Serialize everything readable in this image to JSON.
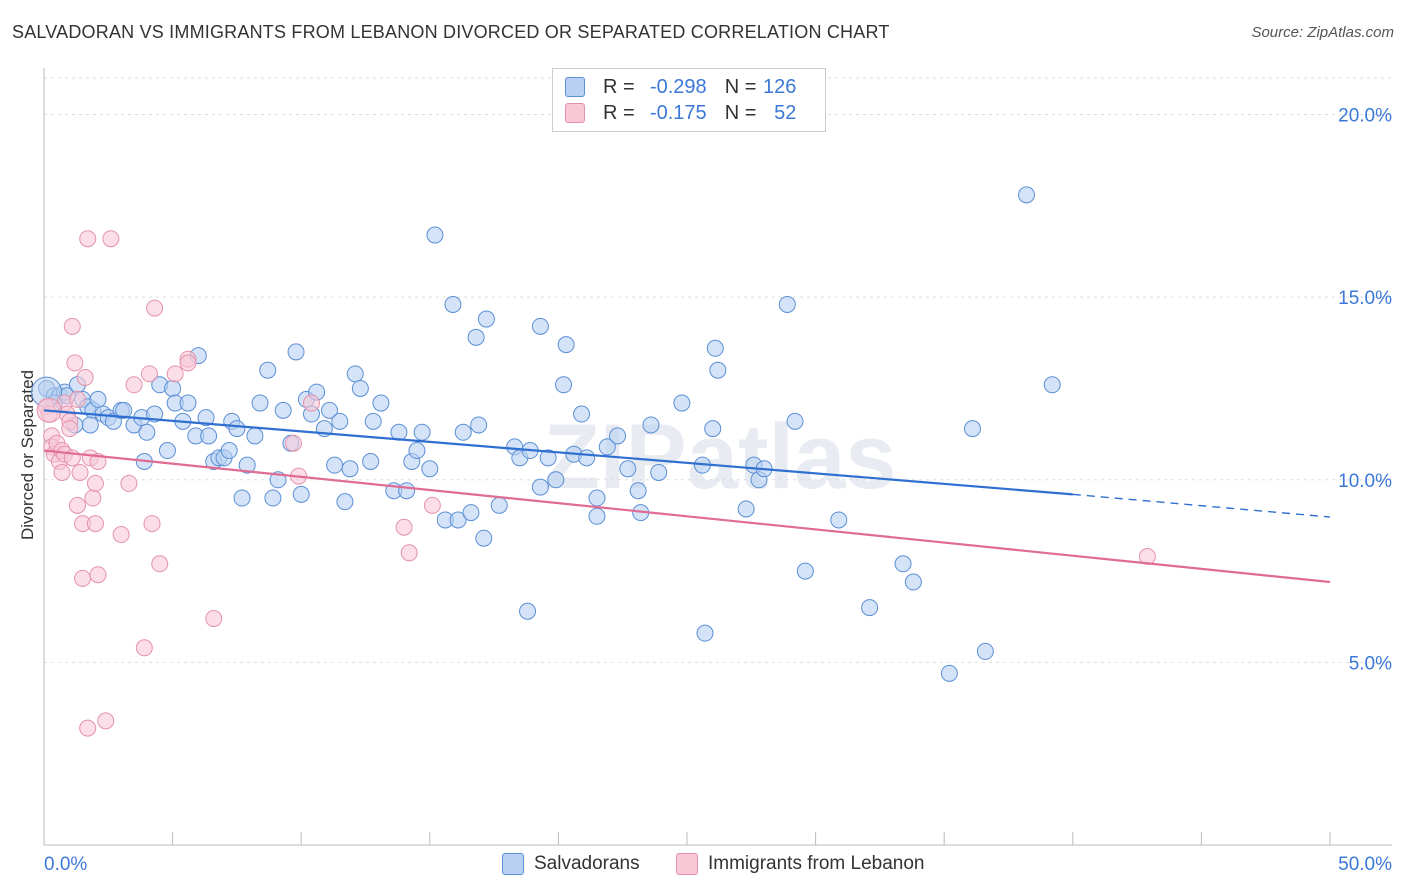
{
  "title": "SALVADORAN VS IMMIGRANTS FROM LEBANON DIVORCED OR SEPARATED CORRELATION CHART",
  "source": "Source: ZipAtlas.com",
  "watermark": "ZIPatlas",
  "legend_top": {
    "rows": [
      {
        "r_label": "R =",
        "r_value": "-0.298",
        "n_label": "N =",
        "n_value": "126",
        "color": "#5b8fd6"
      },
      {
        "r_label": "R =",
        "r_value": "-0.175",
        "n_label": "N =",
        "n_value": "52",
        "color": "#e493ad"
      }
    ]
  },
  "chart_data": {
    "type": "scatter",
    "title": "SALVADORAN VS IMMIGRANTS FROM LEBANON DIVORCED OR SEPARATED CORRELATION CHART",
    "xlabel": "",
    "ylabel": "Divorced or Separated",
    "xlim": [
      0,
      50
    ],
    "ylim": [
      0,
      21
    ],
    "x_tick_labels": [
      "0.0%",
      "50.0%"
    ],
    "y_ticks": [
      5,
      10,
      15,
      20
    ],
    "y_tick_labels": [
      "5.0%",
      "10.0%",
      "15.0%",
      "20.0%"
    ],
    "grid": true,
    "legend_position": "bottom",
    "series": [
      {
        "name": "Salvadorans",
        "color": "#5b8fd6",
        "fill": "#b8d0f1",
        "trend": {
          "x0": 0,
          "y0": 11.9,
          "x1": 40,
          "y1": 9.6,
          "dash_to_x": 50,
          "dash_to_y": 8.98
        },
        "points": [
          [
            0.1,
            12.5
          ],
          [
            0.4,
            12.3
          ],
          [
            0.6,
            12.3
          ],
          [
            0.8,
            12.4
          ],
          [
            0.9,
            12.3
          ],
          [
            1.3,
            12.6
          ],
          [
            1.5,
            12.2
          ],
          [
            1.7,
            12.0
          ],
          [
            1.9,
            11.9
          ],
          [
            1.8,
            11.5
          ],
          [
            2.1,
            12.2
          ],
          [
            2.3,
            11.8
          ],
          [
            2.5,
            11.7
          ],
          [
            2.7,
            11.6
          ],
          [
            3.0,
            11.9
          ],
          [
            3.1,
            11.9
          ],
          [
            3.5,
            11.5
          ],
          [
            3.8,
            11.7
          ],
          [
            4.0,
            11.3
          ],
          [
            3.9,
            10.5
          ],
          [
            4.3,
            11.8
          ],
          [
            4.5,
            12.6
          ],
          [
            4.8,
            10.8
          ],
          [
            5.0,
            12.5
          ],
          [
            5.1,
            12.1
          ],
          [
            5.4,
            11.6
          ],
          [
            5.6,
            12.1
          ],
          [
            5.9,
            11.2
          ],
          [
            6.0,
            13.4
          ],
          [
            6.3,
            11.7
          ],
          [
            6.4,
            11.2
          ],
          [
            6.6,
            10.5
          ],
          [
            6.8,
            10.6
          ],
          [
            7.0,
            10.6
          ],
          [
            7.2,
            10.8
          ],
          [
            7.3,
            11.6
          ],
          [
            7.5,
            11.4
          ],
          [
            7.7,
            9.5
          ],
          [
            7.9,
            10.4
          ],
          [
            8.2,
            11.2
          ],
          [
            8.4,
            12.1
          ],
          [
            8.7,
            13.0
          ],
          [
            8.9,
            9.5
          ],
          [
            9.1,
            10.0
          ],
          [
            9.3,
            11.9
          ],
          [
            9.6,
            11.0
          ],
          [
            9.8,
            13.5
          ],
          [
            10.0,
            9.6
          ],
          [
            10.2,
            12.2
          ],
          [
            10.4,
            11.8
          ],
          [
            10.6,
            12.4
          ],
          [
            10.9,
            11.4
          ],
          [
            11.1,
            11.9
          ],
          [
            11.3,
            10.4
          ],
          [
            11.5,
            11.6
          ],
          [
            11.7,
            9.4
          ],
          [
            11.9,
            10.3
          ],
          [
            12.1,
            12.9
          ],
          [
            12.3,
            12.5
          ],
          [
            12.7,
            10.5
          ],
          [
            12.8,
            11.6
          ],
          [
            13.1,
            12.1
          ],
          [
            13.6,
            9.7
          ],
          [
            13.8,
            11.3
          ],
          [
            14.1,
            9.7
          ],
          [
            14.3,
            10.5
          ],
          [
            14.5,
            10.8
          ],
          [
            14.7,
            11.3
          ],
          [
            15.0,
            10.3
          ],
          [
            15.2,
            16.7
          ],
          [
            15.6,
            8.9
          ],
          [
            15.9,
            14.8
          ],
          [
            16.1,
            8.9
          ],
          [
            16.3,
            11.3
          ],
          [
            16.6,
            9.1
          ],
          [
            16.8,
            13.9
          ],
          [
            16.9,
            11.5
          ],
          [
            17.1,
            8.4
          ],
          [
            17.2,
            14.4
          ],
          [
            17.7,
            9.3
          ],
          [
            18.3,
            10.9
          ],
          [
            18.5,
            10.6
          ],
          [
            18.8,
            6.4
          ],
          [
            18.9,
            10.8
          ],
          [
            19.3,
            14.2
          ],
          [
            19.3,
            9.8
          ],
          [
            19.6,
            10.6
          ],
          [
            19.9,
            10.0
          ],
          [
            20.2,
            12.6
          ],
          [
            20.3,
            13.7
          ],
          [
            20.6,
            10.7
          ],
          [
            20.9,
            11.8
          ],
          [
            21.1,
            10.6
          ],
          [
            21.5,
            9.5
          ],
          [
            21.5,
            9.0
          ],
          [
            21.9,
            10.9
          ],
          [
            22.3,
            11.2
          ],
          [
            22.7,
            10.3
          ],
          [
            23.1,
            9.7
          ],
          [
            23.2,
            9.1
          ],
          [
            23.6,
            11.5
          ],
          [
            23.9,
            10.2
          ],
          [
            24.8,
            12.1
          ],
          [
            25.6,
            10.4
          ],
          [
            25.7,
            5.8
          ],
          [
            26.0,
            11.4
          ],
          [
            26.1,
            13.6
          ],
          [
            26.2,
            13.0
          ],
          [
            27.3,
            9.2
          ],
          [
            27.6,
            10.4
          ],
          [
            27.8,
            10.0
          ],
          [
            28.0,
            10.3
          ],
          [
            28.9,
            14.8
          ],
          [
            29.2,
            11.6
          ],
          [
            29.6,
            7.5
          ],
          [
            30.9,
            8.9
          ],
          [
            32.1,
            6.5
          ],
          [
            33.4,
            7.7
          ],
          [
            33.8,
            7.2
          ],
          [
            35.2,
            4.7
          ],
          [
            36.1,
            11.4
          ],
          [
            36.6,
            5.3
          ],
          [
            38.2,
            17.8
          ],
          [
            39.2,
            12.6
          ],
          [
            0.4,
            12.1
          ],
          [
            1.2,
            11.5
          ]
        ]
      },
      {
        "name": "Immigrants from Lebanon",
        "color": "#e493ad",
        "fill": "#f8c8d7",
        "trend": {
          "x0": 0,
          "y0": 10.8,
          "x1": 50,
          "y1": 7.2
        },
        "points": [
          [
            0.1,
            12.0
          ],
          [
            0.2,
            11.8
          ],
          [
            0.3,
            11.2
          ],
          [
            0.3,
            10.9
          ],
          [
            0.4,
            10.7
          ],
          [
            0.5,
            11.0
          ],
          [
            0.6,
            10.5
          ],
          [
            0.7,
            10.8
          ],
          [
            0.7,
            10.2
          ],
          [
            0.8,
            10.7
          ],
          [
            0.8,
            12.1
          ],
          [
            0.9,
            11.8
          ],
          [
            1.0,
            11.6
          ],
          [
            1.0,
            11.4
          ],
          [
            1.1,
            10.6
          ],
          [
            1.1,
            14.2
          ],
          [
            1.2,
            13.2
          ],
          [
            1.3,
            9.3
          ],
          [
            1.3,
            12.2
          ],
          [
            1.4,
            10.2
          ],
          [
            1.5,
            8.8
          ],
          [
            1.5,
            7.3
          ],
          [
            1.6,
            12.8
          ],
          [
            1.7,
            3.2
          ],
          [
            1.7,
            16.6
          ],
          [
            1.8,
            10.6
          ],
          [
            1.9,
            9.5
          ],
          [
            2.0,
            9.9
          ],
          [
            2.0,
            8.8
          ],
          [
            2.1,
            7.4
          ],
          [
            2.1,
            10.5
          ],
          [
            2.4,
            3.4
          ],
          [
            2.6,
            16.6
          ],
          [
            3.0,
            8.5
          ],
          [
            3.3,
            9.9
          ],
          [
            3.5,
            12.6
          ],
          [
            3.9,
            5.4
          ],
          [
            4.1,
            12.9
          ],
          [
            4.2,
            8.8
          ],
          [
            4.3,
            14.7
          ],
          [
            4.5,
            7.7
          ],
          [
            5.1,
            12.9
          ],
          [
            5.6,
            13.3
          ],
          [
            5.6,
            13.2
          ],
          [
            6.6,
            6.2
          ],
          [
            9.7,
            11.0
          ],
          [
            9.9,
            10.1
          ],
          [
            10.4,
            12.1
          ],
          [
            14.0,
            8.7
          ],
          [
            14.2,
            8.0
          ],
          [
            15.1,
            9.3
          ],
          [
            42.9,
            7.9
          ]
        ]
      }
    ]
  },
  "legend_bottom": [
    {
      "label": "Salvadorans",
      "color": "#5b8fd6"
    },
    {
      "label": "Immigrants from Lebanon",
      "color": "#e493ad"
    }
  ]
}
